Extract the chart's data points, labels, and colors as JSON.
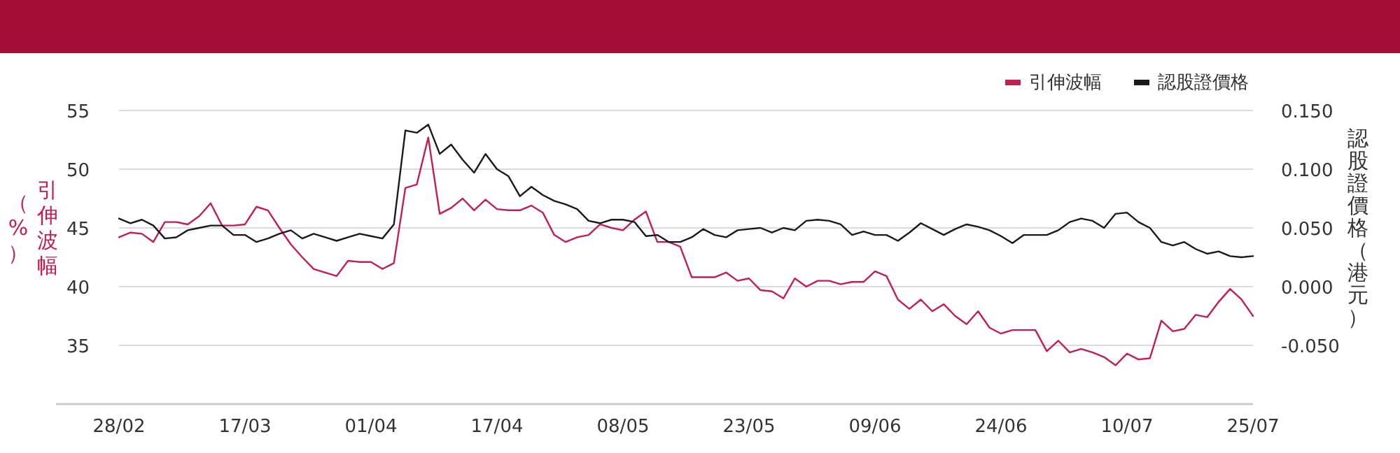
{
  "chart_data": {
    "type": "line",
    "categories": [
      "28/02",
      null,
      null,
      null,
      null,
      null,
      null,
      null,
      null,
      null,
      null,
      "17/03",
      null,
      null,
      null,
      null,
      null,
      null,
      null,
      null,
      null,
      null,
      "01/04",
      null,
      null,
      null,
      null,
      null,
      null,
      null,
      null,
      null,
      null,
      "17/04",
      null,
      null,
      null,
      null,
      null,
      null,
      null,
      null,
      null,
      null,
      "08/05",
      null,
      null,
      null,
      null,
      null,
      null,
      null,
      null,
      null,
      null,
      "23/05",
      null,
      null,
      null,
      null,
      null,
      null,
      null,
      null,
      null,
      null,
      "09/06",
      null,
      null,
      null,
      null,
      null,
      null,
      null,
      null,
      null,
      null,
      "24/06",
      null,
      null,
      null,
      null,
      null,
      null,
      null,
      null,
      null,
      null,
      "10/07",
      null,
      null,
      null,
      null,
      null,
      null,
      null,
      null,
      null,
      null,
      "25/07"
    ],
    "series": [
      {
        "name": "引伸波幅",
        "color": "#c41e4f",
        "values": [
          44.2,
          44.6,
          44.5,
          43.8,
          45.5,
          45.5,
          45.3,
          46.0,
          47.1,
          45.2,
          45.2,
          45.3,
          46.8,
          46.5,
          45.0,
          43.6,
          42.5,
          41.5,
          41.2,
          40.9,
          42.2,
          42.1,
          42.1,
          41.5,
          42.0,
          48.4,
          48.7,
          52.7,
          46.2,
          46.7,
          47.5,
          46.5,
          47.4,
          46.6,
          46.5,
          46.5,
          46.9,
          46.3,
          44.4,
          43.8,
          44.2,
          44.4,
          45.3,
          45.0,
          44.8,
          45.7,
          46.4,
          43.8,
          43.8,
          43.4,
          40.8,
          40.8,
          40.8,
          41.2,
          40.5,
          40.7,
          39.7,
          39.6,
          39.0,
          40.7,
          40.0,
          40.5,
          40.5,
          40.2,
          40.4,
          40.4,
          41.3,
          40.9,
          38.9,
          38.1,
          38.9,
          37.9,
          38.5,
          37.5,
          36.8,
          37.9,
          36.5,
          36.0,
          36.3,
          36.3,
          36.3,
          34.5,
          35.4,
          34.4,
          34.7,
          34.4,
          34.0,
          33.3,
          34.3,
          33.8,
          33.9,
          37.1,
          36.2,
          36.4,
          37.6,
          37.4,
          38.7,
          39.8,
          38.9,
          37.5
        ]
      },
      {
        "name": "認股證價格",
        "color": "#1a1a1a",
        "axis": "y2",
        "values": [
          0.058,
          0.054,
          0.057,
          0.052,
          0.041,
          0.042,
          0.048,
          0.05,
          0.052,
          0.052,
          0.044,
          0.044,
          0.038,
          0.041,
          0.045,
          0.048,
          0.041,
          0.045,
          0.042,
          0.039,
          0.042,
          0.045,
          0.043,
          0.041,
          0.053,
          0.133,
          0.131,
          0.138,
          0.113,
          0.121,
          0.108,
          0.097,
          0.113,
          0.1,
          0.094,
          0.077,
          0.085,
          0.078,
          0.073,
          0.07,
          0.066,
          0.056,
          0.054,
          0.057,
          0.057,
          0.055,
          0.043,
          0.044,
          0.038,
          0.038,
          0.042,
          0.049,
          0.044,
          0.042,
          0.048,
          0.049,
          0.05,
          0.046,
          0.05,
          0.048,
          0.056,
          0.057,
          0.056,
          0.053,
          0.044,
          0.047,
          0.044,
          0.044,
          0.039,
          0.046,
          0.054,
          0.049,
          0.044,
          0.049,
          0.053,
          0.051,
          0.048,
          0.043,
          0.037,
          0.044,
          0.044,
          0.044,
          0.048,
          0.055,
          0.058,
          0.056,
          0.05,
          0.062,
          0.063,
          0.055,
          0.05,
          0.038,
          0.035,
          0.038,
          0.032,
          0.028,
          0.03,
          0.026,
          0.025,
          0.026
        ]
      }
    ],
    "ylabel": "引伸波幅（%）",
    "y2label": "認股證價格（港元）",
    "ylim": [
      30,
      55
    ],
    "yticks": [
      35,
      40,
      45,
      50,
      55
    ],
    "y2lim": [
      -0.1,
      0.15
    ],
    "y2ticks": [
      {
        "value": -0.05,
        "label": "-0.050"
      },
      {
        "value": 0,
        "label": "0.000"
      },
      {
        "value": 0.05,
        "label": "0.050"
      },
      {
        "value": 0.1,
        "label": "0.100"
      },
      {
        "value": 0.15,
        "label": "0.150"
      }
    ],
    "grid": "y",
    "legend": "top right"
  }
}
